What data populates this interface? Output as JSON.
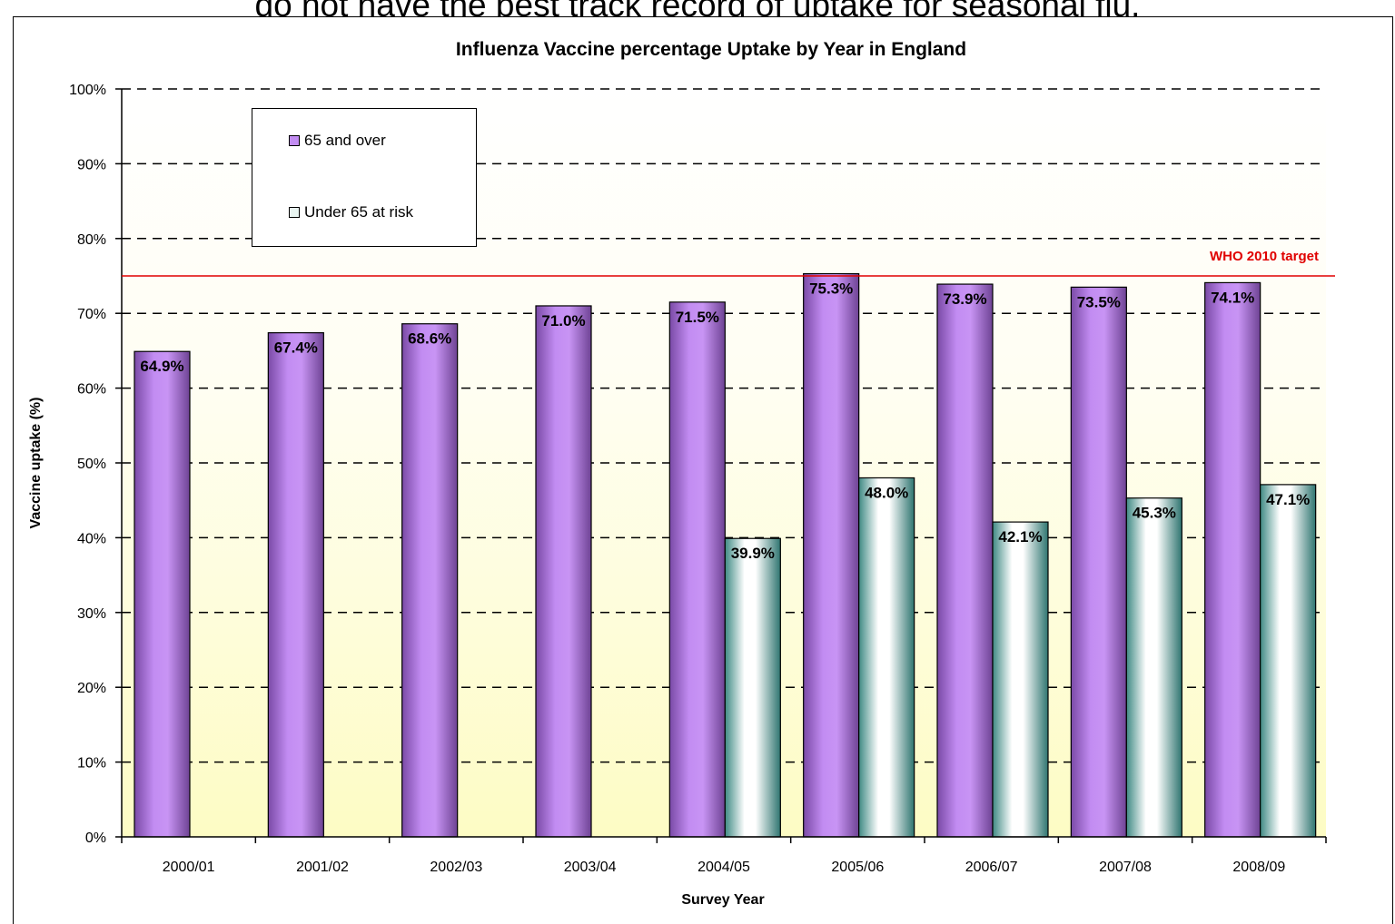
{
  "page": {
    "top_text": "do not have the best track record of uptake for seasonal flu."
  },
  "chart_data": {
    "type": "bar",
    "title": "Influenza Vaccine percentage Uptake by Year in England",
    "xlabel": "Survey Year",
    "ylabel": "Vaccine uptake (%)",
    "ylim": [
      0,
      100
    ],
    "yticks": [
      "0%",
      "10%",
      "20%",
      "30%",
      "40%",
      "50%",
      "60%",
      "70%",
      "80%",
      "90%",
      "100%"
    ],
    "grid": true,
    "legend_position": "top-left",
    "categories": [
      "2000/01",
      "2001/02",
      "2002/03",
      "2003/04",
      "2004/05",
      "2005/06",
      "2006/07",
      "2007/08",
      "2008/09"
    ],
    "series": [
      {
        "name": "65 and over",
        "color": "#c28cf2",
        "values": [
          64.9,
          67.4,
          68.6,
          71.0,
          71.5,
          75.3,
          73.9,
          73.5,
          74.1
        ],
        "labels": [
          "64.9%",
          "67.4%",
          "68.6%",
          "71.0%",
          "71.5%",
          "75.3%",
          "73.9%",
          "73.5%",
          "74.1%"
        ]
      },
      {
        "name": "Under 65 at risk",
        "color": "#e8f4f0",
        "values": [
          null,
          null,
          null,
          null,
          39.9,
          48.0,
          42.1,
          45.3,
          47.1
        ],
        "labels": [
          "",
          "",
          "",
          "",
          "39.9%",
          "48.0%",
          "42.1%",
          "45.3%",
          "47.1%"
        ]
      }
    ],
    "reference_line": {
      "label": "WHO 2010 target",
      "value": 75,
      "color": "#e00000"
    }
  }
}
